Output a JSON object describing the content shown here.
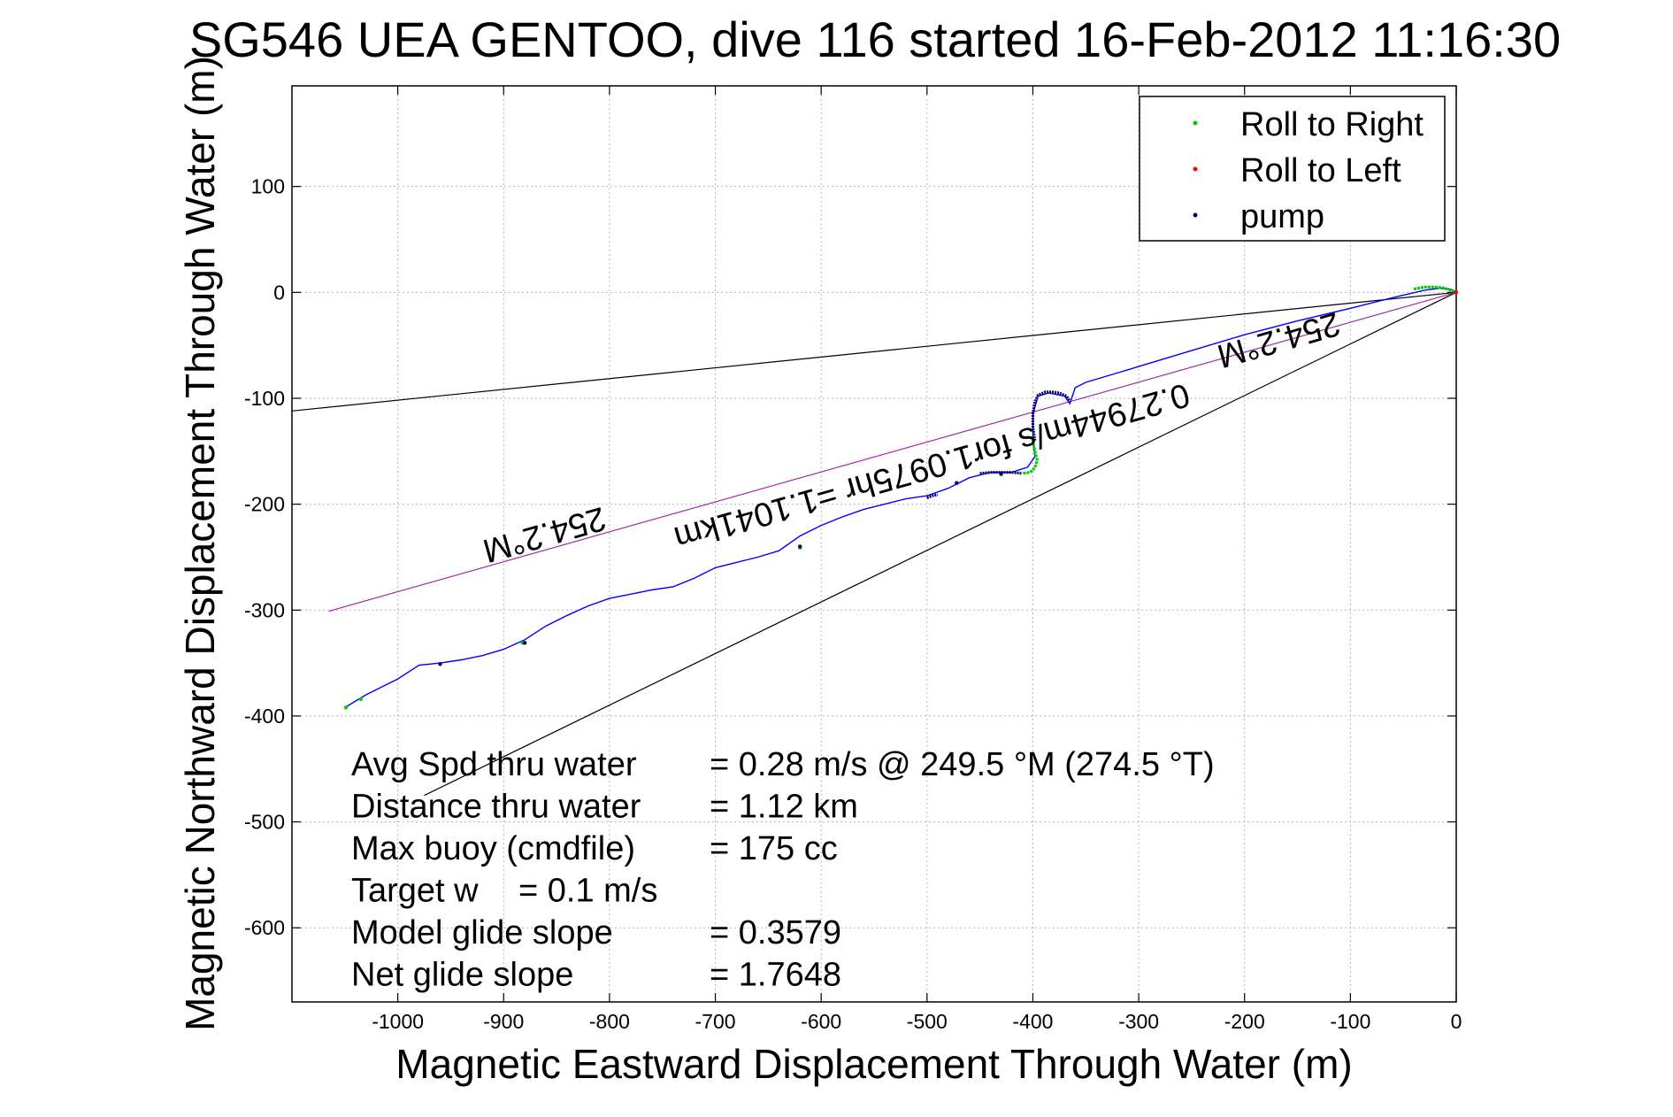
{
  "chart_data": {
    "type": "line",
    "title": "SG546 UEA GENTOO, dive 116 started 16-Feb-2012 11:16:30",
    "xlabel": "Magnetic Eastward Displacement Through Water (m)",
    "ylabel": "Magnetic Northward Displacement Through Water (m)",
    "xlim": [
      -1100,
      0
    ],
    "ylim": [
      -670,
      195
    ],
    "xticks": [
      -1000,
      -900,
      -800,
      -700,
      -600,
      -500,
      -400,
      -300,
      -200,
      -100,
      0
    ],
    "yticks": [
      100,
      0,
      -100,
      -200,
      -300,
      -400,
      -500,
      -600
    ],
    "grid": true,
    "legend_position": "top-right",
    "legend": [
      {
        "label": "Roll to Right",
        "color": "#00cc00"
      },
      {
        "label": "Roll to Left",
        "color": "#ff0000"
      },
      {
        "label": "pump",
        "color": "#000066"
      }
    ],
    "track": {
      "color": "#0000ff",
      "x": [
        -1050,
        -1030,
        -1000,
        -980,
        -960,
        -940,
        -920,
        -900,
        -880,
        -860,
        -840,
        -820,
        -800,
        -780,
        -760,
        -740,
        -720,
        -700,
        -680,
        -660,
        -640,
        -620,
        -600,
        -580,
        -560,
        -540,
        -520,
        -500,
        -480,
        -460,
        -440,
        -420,
        -405,
        -398,
        -400,
        -400,
        -395,
        -385,
        -370,
        -365,
        -360,
        -350,
        -300,
        -250,
        -200,
        -150,
        -100,
        -60,
        -30,
        -15,
        -5,
        0
      ],
      "y": [
        -392,
        -380,
        -365,
        -352,
        -350,
        -347,
        -343,
        -337,
        -328,
        -315,
        -305,
        -296,
        -289,
        -285,
        -281,
        -278,
        -270,
        -260,
        -255,
        -250,
        -244,
        -230,
        -220,
        -212,
        -205,
        -200,
        -195,
        -192,
        -185,
        -175,
        -170,
        -170,
        -165,
        -155,
        -140,
        -115,
        -98,
        -95,
        -98,
        -105,
        -90,
        -85,
        -70,
        -55,
        -40,
        -27,
        -15,
        -5,
        2,
        4,
        3,
        0
      ]
    },
    "roll_right_segments": [
      {
        "x": [
          -400,
          -398,
          -396,
          -397,
          -400,
          -403,
          -410
        ],
        "y": [
          -140,
          -150,
          -158,
          -163,
          -168,
          -170,
          -171
        ]
      },
      {
        "x": [
          -40,
          -30,
          -20,
          -12,
          -5,
          0
        ],
        "y": [
          3,
          5,
          5,
          4,
          2,
          0
        ]
      }
    ],
    "roll_right_points": {
      "x": [
        -1049,
        -1035,
        -882,
        -620,
        -430
      ],
      "y": [
        -392,
        -384,
        -331,
        -241,
        -172
      ]
    },
    "roll_left_points": {
      "x": [
        0
      ],
      "y": [
        0
      ]
    },
    "pump_segments": [
      {
        "x": [
          -450,
          -440,
          -430,
          -420,
          -410
        ],
        "y": [
          -171,
          -170,
          -170,
          -170,
          -171
        ]
      },
      {
        "x": [
          -398,
          -400,
          -400,
          -398,
          -395,
          -388,
          -382,
          -375,
          -368,
          -365
        ],
        "y": [
          -140,
          -128,
          -115,
          -103,
          -97,
          -94,
          -94,
          -95,
          -98,
          -103
        ]
      },
      {
        "x": [
          -500,
          -495,
          -490
        ],
        "y": [
          -194,
          -192,
          -191
        ]
      }
    ],
    "pump_points": {
      "x": [
        -960,
        -880,
        -620,
        -472,
        -430,
        -0.5
      ],
      "y": [
        -351,
        -331,
        -240,
        -180,
        -171,
        0
      ]
    },
    "reference_lines": [
      {
        "name": "",
        "color": "#000000",
        "x": [
          -1100,
          0
        ],
        "y": [
          -112,
          0
        ]
      },
      {
        "name": "",
        "color": "#000000",
        "x": [
          -975,
          0
        ],
        "y": [
          -475,
          0
        ]
      },
      {
        "name": "",
        "color": "#ff00ff",
        "x": [
          -1065,
          0
        ],
        "y": [
          -301,
          0
        ]
      },
      {
        "name": "",
        "color": "#555555",
        "x": [
          -1065,
          0
        ],
        "y": [
          -301,
          0
        ]
      }
    ],
    "annotations": [
      {
        "text": "254.2°M",
        "x": -1,
        "y": -1,
        "rotation": 164.2
      },
      {
        "text": "0.27944m/s for1.0975hr =1.1041km",
        "x": -1,
        "y": -1,
        "rotation": 164.2
      },
      {
        "text": "254.2°M",
        "x": -1,
        "y": -1,
        "rotation": 164.2
      }
    ],
    "stats": [
      {
        "label": "Avg Spd thru water",
        "value": "=  0.28 m/s @ 249.5 °M (274.5 °T)"
      },
      {
        "label": "Distance thru water",
        "value": "=  1.12 km"
      },
      {
        "label": "Max buoy (cmdfile)",
        "value": "= 175 cc"
      },
      {
        "label": "Target w",
        "value": "= 0.1 m/s"
      },
      {
        "label": "Model glide slope",
        "value": "= 0.3579"
      },
      {
        "label": "Net glide slope",
        "value": "= 1.7648"
      }
    ]
  }
}
